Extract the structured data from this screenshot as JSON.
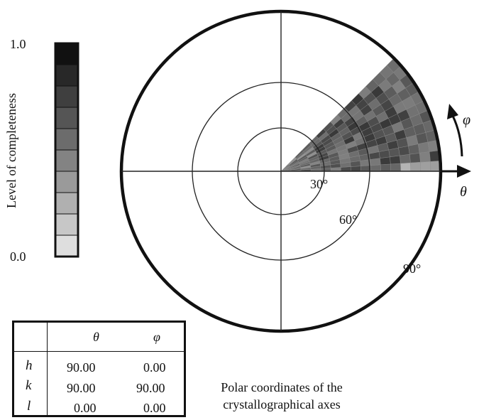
{
  "legend": {
    "label": "Level of completeness",
    "max_label": "1.0",
    "min_label": "0.0",
    "levels": 10,
    "darkest_color": "#111111",
    "lightest_color": "#dedede"
  },
  "polar": {
    "ring_labels": [
      "30°",
      "60°",
      "90°"
    ],
    "theta_axis_label": "θ",
    "phi_arrow_label": "φ",
    "filled_sector_phi_range_deg": [
      0,
      45
    ],
    "filled_sector_theta_range_deg": [
      0,
      90
    ]
  },
  "table": {
    "headers": [
      "",
      "θ",
      "φ"
    ],
    "rows": [
      {
        "axis": "h",
        "theta": "90.00",
        "phi": "0.00"
      },
      {
        "axis": "k",
        "theta": "90.00",
        "phi": "90.00"
      },
      {
        "axis": "l",
        "theta": "0.00",
        "phi": "0.00"
      }
    ]
  },
  "caption": {
    "line1": "Polar coordinates of the",
    "line2": "crystallographical axes"
  }
}
